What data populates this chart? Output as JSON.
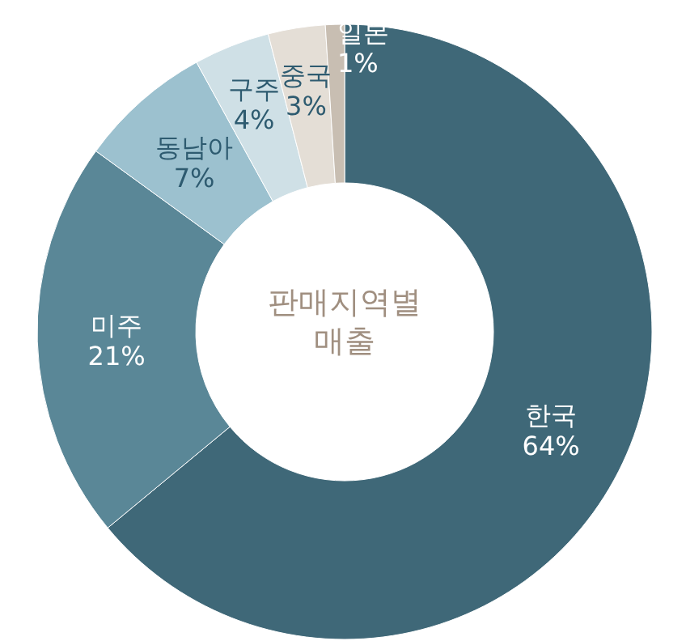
{
  "chart_data": {
    "type": "donut",
    "title": "판매지역별 매출",
    "categories": [
      "한국",
      "미주",
      "동남아",
      "구주",
      "중국",
      "일본"
    ],
    "values": [
      64,
      21,
      7,
      4,
      3,
      1
    ],
    "colors": [
      "#3f6878",
      "#5a8797",
      "#9cc1cf",
      "#cfe0e6",
      "#e4ded6",
      "#c8beb2"
    ],
    "value_labels": [
      "64%",
      "21%",
      "7%",
      "4%",
      "3%",
      "1%"
    ],
    "legend": false
  }
}
